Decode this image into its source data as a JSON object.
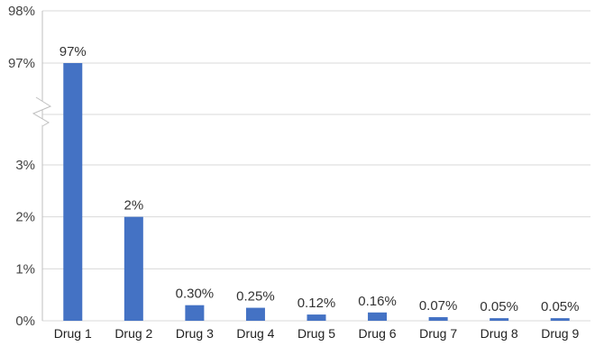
{
  "chart_data": {
    "type": "bar",
    "title": "",
    "xlabel": "",
    "ylabel": "",
    "categories": [
      "Drug 1",
      "Drug 2",
      "Drug 3",
      "Drug 4",
      "Drug 5",
      "Drug 6",
      "Drug 7",
      "Drug 8",
      "Drug 9"
    ],
    "values": [
      97,
      2,
      0.3,
      0.25,
      0.12,
      0.16,
      0.07,
      0.05,
      0.05
    ],
    "data_labels": [
      "97%",
      "2%",
      "0.30%",
      "0.25%",
      "0.12%",
      "0.16%",
      "0.07%",
      "0.05%",
      "0.05%"
    ],
    "y_axis_broken": true,
    "y_lower_segment": {
      "ylim": [
        0,
        3
      ],
      "ticks": [
        0,
        1,
        2,
        3
      ],
      "tick_labels": [
        "0%",
        "1%",
        "2%",
        "3%"
      ]
    },
    "y_upper_segment": {
      "ylim": [
        97,
        98
      ],
      "ticks": [
        97,
        98
      ],
      "tick_labels": [
        "97%",
        "98%"
      ]
    },
    "grid": true,
    "legend": "none",
    "bar_color": "#4472c4"
  }
}
